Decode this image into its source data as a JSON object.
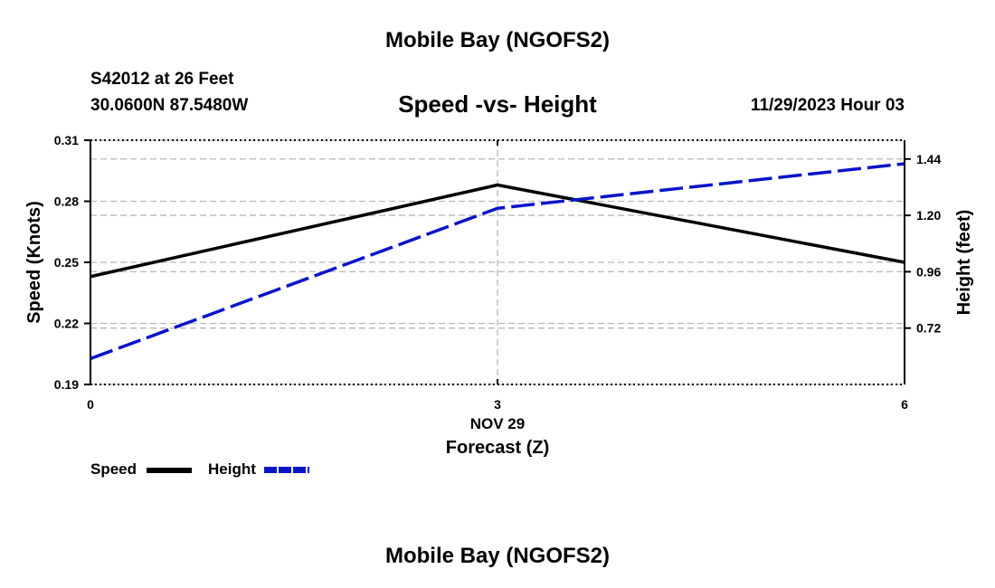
{
  "page_title": "Mobile Bay (NGOFS2)",
  "footer_title": "Mobile Bay (NGOFS2)",
  "station": {
    "name_line": "S42012 at 26 Feet",
    "coords_line": "30.0600N  87.5480W",
    "datetime": "11/29/2023 Hour 03"
  },
  "chart_data": {
    "type": "line",
    "title": "Speed -vs- Height",
    "xlabel": "Forecast (Z)",
    "xdate_label": "NOV 29",
    "x_ticks": [
      0,
      3,
      6
    ],
    "x_tick_labels": [
      "0",
      "3",
      "6"
    ],
    "xlim": [
      0,
      6
    ],
    "grid": true,
    "left_axis": {
      "label": "Speed (Knots)",
      "ylim": [
        0.19,
        0.31
      ],
      "ticks": [
        0.19,
        0.22,
        0.25,
        0.28,
        0.31
      ],
      "tick_labels": [
        "0.19",
        "0.22",
        "0.25",
        "0.28",
        "0.31"
      ]
    },
    "right_axis": {
      "label": "Height (feet)",
      "ylim": [
        0.48,
        1.52
      ],
      "ticks": [
        0.72,
        0.96,
        1.2,
        1.44
      ],
      "tick_labels": [
        "0.72",
        "0.96",
        "1.20",
        "1.44"
      ]
    },
    "series": [
      {
        "name": "Speed",
        "axis": "left",
        "color": "#000000",
        "style": "solid",
        "x": [
          0,
          3,
          6
        ],
        "values": [
          0.243,
          0.288,
          0.25
        ]
      },
      {
        "name": "Height",
        "axis": "right",
        "color": "#0a14c8",
        "style": "dashed",
        "x": [
          0,
          3,
          6
        ],
        "values": [
          0.59,
          1.23,
          1.42
        ]
      }
    ]
  }
}
